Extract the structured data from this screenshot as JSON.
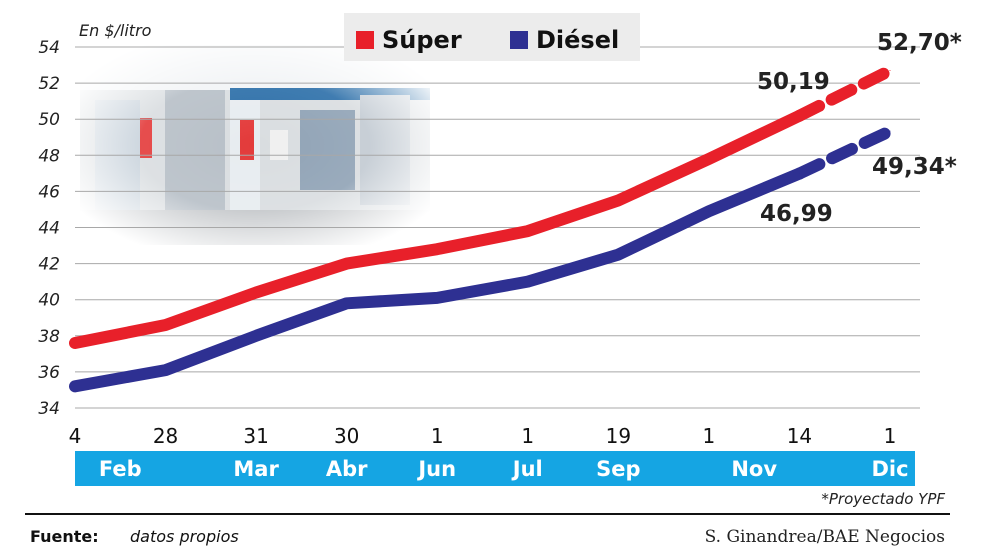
{
  "chart_data": {
    "type": "line",
    "ylabel": "En $/litro",
    "ylim": [
      34,
      54
    ],
    "y_ticks": [
      34,
      36,
      38,
      40,
      42,
      44,
      46,
      48,
      50,
      52,
      54
    ],
    "grid": true,
    "legend_position": "top-center",
    "x_day_labels": [
      "4",
      "28",
      "31",
      "30",
      "1",
      "1",
      "19",
      "1",
      "14",
      "1"
    ],
    "x_month_labels": [
      "Feb",
      "Mar",
      "Abr",
      "Jun",
      "Jul",
      "Sep",
      "Nov",
      "Dic"
    ],
    "series": [
      {
        "name": "Súper",
        "color": "#e8202a",
        "values": [
          37.6,
          38.6,
          40.4,
          42.0,
          42.8,
          43.8,
          45.5,
          47.8,
          50.19,
          52.7
        ],
        "projected_from_index": 8
      },
      {
        "name": "Diésel",
        "color": "#2e3092",
        "values": [
          35.2,
          36.1,
          38.0,
          39.8,
          40.1,
          41.0,
          42.5,
          44.9,
          46.99,
          49.34
        ],
        "projected_from_index": 8
      }
    ],
    "annotations": [
      "50,19",
      "52,70*",
      "46,99",
      "49,34*"
    ],
    "footnote": "*Proyectado YPF"
  },
  "footer": {
    "source_label": "Fuente:",
    "source_value": "datos propios",
    "credit": "S. Ginandrea/BAE Negocios"
  },
  "colors": {
    "month_band": "#15a5e3",
    "grid": "#a8a8a8",
    "legend_box": "#ececec"
  },
  "background_image": "gas-station-photo"
}
